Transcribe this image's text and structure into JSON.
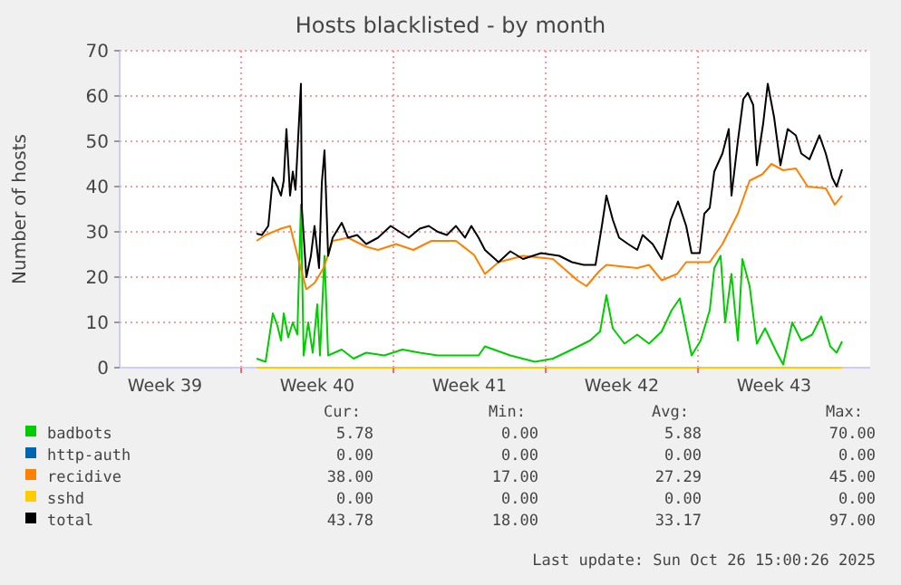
{
  "chart_data": {
    "type": "line",
    "title": "Hosts blacklisted - by month",
    "ylabel": "Number of hosts",
    "xlim": [
      "2025-09-23T10:00",
      "2025-10-27T22:00"
    ],
    "ylim": [
      0,
      70
    ],
    "xticks": [
      {
        "value": "2025-09-25T12:00",
        "label": "Week 39"
      },
      {
        "value": "2025-09-29",
        "label": null
      },
      {
        "value": "2025-10-02T12:00",
        "label": "Week 40"
      },
      {
        "value": "2025-10-06",
        "label": null
      },
      {
        "value": "2025-10-09T12:00",
        "label": "Week 41"
      },
      {
        "value": "2025-10-13",
        "label": null
      },
      {
        "value": "2025-10-16T12:00",
        "label": "Week 42"
      },
      {
        "value": "2025-10-20",
        "label": null
      },
      {
        "value": "2025-10-23T12:00",
        "label": "Week 43"
      }
    ],
    "yticks": [
      0,
      10,
      20,
      30,
      40,
      50,
      60,
      70
    ],
    "grid": true,
    "legend": "bottom",
    "line_style": "solid",
    "marker": "none",
    "series": [
      {
        "name": "badbots",
        "color": "#00cc00",
        "x": [
          "2025-09-29T17:00",
          "2025-09-30T03:00",
          "2025-09-30T11:00",
          "2025-09-30T16:00",
          "2025-09-30T20:00",
          "2025-09-30T23:00",
          "2025-10-01T04:00",
          "2025-10-01T09:00",
          "2025-10-01T14:00",
          "2025-10-01T18:00",
          "2025-10-01T21:00",
          "2025-10-02T02:00",
          "2025-10-02T07:00",
          "2025-10-02T12:00",
          "2025-10-02T15:00",
          "2025-10-02T20:00",
          "2025-10-03T00:00",
          "2025-10-03T15:00",
          "2025-10-04T04:00",
          "2025-10-04T18:00",
          "2025-10-05T14:00",
          "2025-10-06T10:00",
          "2025-10-07T05:00",
          "2025-10-08T01:00",
          "2025-10-08T21:00",
          "2025-10-09T22:00",
          "2025-10-10T05:00",
          "2025-10-11T09:00",
          "2025-10-12T12:00",
          "2025-10-13T08:00",
          "2025-10-14T05:00",
          "2025-10-15T01:00",
          "2025-10-15T12:00",
          "2025-10-15T19:00",
          "2025-10-16T02:00",
          "2025-10-16T15:00",
          "2025-10-17T05:00",
          "2025-10-17T18:00",
          "2025-10-18T08:00",
          "2025-10-18T19:00",
          "2025-10-19T04:00",
          "2025-10-19T17:00",
          "2025-10-20T03:00",
          "2025-10-20T13:00",
          "2025-10-20T18:00",
          "2025-10-21T01:00",
          "2025-10-21T06:00",
          "2025-10-21T13:00",
          "2025-10-21T20:00",
          "2025-10-22T01:00",
          "2025-10-22T09:00",
          "2025-10-22T17:00",
          "2025-10-23T02:00",
          "2025-10-23T15:00",
          "2025-10-23T22:00",
          "2025-10-24T08:00",
          "2025-10-24T18:00",
          "2025-10-25T06:00",
          "2025-10-25T16:00",
          "2025-10-26T02:00",
          "2025-10-26T09:00",
          "2025-10-26T15:00"
        ],
        "values": [
          2.0,
          1.3,
          12.0,
          9.3,
          6.0,
          12.0,
          6.7,
          10.0,
          7.3,
          36.0,
          2.7,
          10.0,
          3.3,
          14.0,
          2.7,
          24.7,
          2.7,
          4.0,
          2.0,
          3.3,
          2.7,
          4.0,
          3.3,
          2.7,
          2.7,
          2.7,
          4.7,
          2.7,
          1.3,
          2.0,
          4.0,
          6.0,
          8.0,
          16.0,
          8.7,
          5.3,
          7.3,
          5.3,
          8.0,
          12.7,
          15.3,
          2.7,
          6.0,
          12.7,
          22.0,
          24.7,
          10.0,
          20.7,
          6.0,
          24.0,
          18.0,
          5.3,
          8.7,
          3.3,
          0.7,
          10.0,
          6.0,
          7.3,
          11.3,
          4.7,
          3.3,
          5.8
        ]
      },
      {
        "name": "http-auth",
        "color": "#0066b3"
      },
      {
        "name": "recidive",
        "color": "#ff8000",
        "x": [
          "2025-09-29T17:00",
          "2025-09-30T03:00",
          "2025-09-30T20:00",
          "2025-10-01T06:00",
          "2025-10-01T16:00",
          "2025-10-02T00:00",
          "2025-10-02T09:00",
          "2025-10-02T19:00",
          "2025-10-03T05:00",
          "2025-10-03T22:00",
          "2025-10-04T18:00",
          "2025-10-05T07:00",
          "2025-10-06T03:00",
          "2025-10-06T22:00",
          "2025-10-07T18:00",
          "2025-10-08T21:00",
          "2025-10-09T17:00",
          "2025-10-10T05:00",
          "2025-10-10T20:00",
          "2025-10-11T23:00",
          "2025-10-13T08:00",
          "2025-10-14T11:00",
          "2025-10-14T21:00",
          "2025-10-15T11:00",
          "2025-10-15T19:00",
          "2025-10-17T05:00",
          "2025-10-17T18:00",
          "2025-10-18T08:00",
          "2025-10-19T01:00",
          "2025-10-19T11:00",
          "2025-10-20T13:00",
          "2025-10-21T03:00",
          "2025-10-21T20:00",
          "2025-10-22T09:00",
          "2025-10-22T23:00",
          "2025-10-23T09:00",
          "2025-10-23T22:00",
          "2025-10-24T12:00",
          "2025-10-25T01:00",
          "2025-10-25T21:00",
          "2025-10-26T07:00",
          "2025-10-26T15:00"
        ],
        "values": [
          28.0,
          29.3,
          30.7,
          31.3,
          23.3,
          17.3,
          18.7,
          22.0,
          28.0,
          28.7,
          26.7,
          26.0,
          27.3,
          26.0,
          28.0,
          28.0,
          24.9,
          20.7,
          23.3,
          24.7,
          24.0,
          19.3,
          18.0,
          21.3,
          22.7,
          22.0,
          22.7,
          19.3,
          20.7,
          23.3,
          23.3,
          27.3,
          34.0,
          41.3,
          42.7,
          45.0,
          43.6,
          44.0,
          40.0,
          39.6,
          36.0,
          38.0
        ]
      },
      {
        "name": "sshd",
        "color": "#ffcc00",
        "x": [
          "2025-09-29T17:00",
          "2025-10-26T15:00"
        ],
        "values": [
          0,
          0
        ]
      },
      {
        "name": "total",
        "color": "#000000",
        "x": [
          "2025-09-29T17:00",
          "2025-09-29T23:00",
          "2025-09-30T06:00",
          "2025-09-30T11:00",
          "2025-09-30T16:00",
          "2025-09-30T20:00",
          "2025-09-30T23:00",
          "2025-10-01T02:00",
          "2025-10-01T06:00",
          "2025-10-01T09:00",
          "2025-10-01T12:00",
          "2025-10-01T18:00",
          "2025-10-01T19:00",
          "2025-10-02T00:00",
          "2025-10-02T05:00",
          "2025-10-02T09:00",
          "2025-10-02T14:00",
          "2025-10-02T17:00",
          "2025-10-02T20:00",
          "2025-10-03T00:00",
          "2025-10-03T05:00",
          "2025-10-03T15:00",
          "2025-10-03T22:00",
          "2025-10-04T08:00",
          "2025-10-04T18:00",
          "2025-10-05T07:00",
          "2025-10-05T21:00",
          "2025-10-06T07:00",
          "2025-10-06T17:00",
          "2025-10-07T05:00",
          "2025-10-07T15:00",
          "2025-10-08T01:00",
          "2025-10-08T11:00",
          "2025-10-08T21:00",
          "2025-10-09T07:00",
          "2025-10-09T14:00",
          "2025-10-09T22:00",
          "2025-10-10T05:00",
          "2025-10-10T20:00",
          "2025-10-11T09:00",
          "2025-10-11T23:00",
          "2025-10-12T19:00",
          "2025-10-13T15:00",
          "2025-10-14T05:00",
          "2025-10-14T18:00",
          "2025-10-15T07:00",
          "2025-10-15T14:00",
          "2025-10-15T19:00",
          "2025-10-16T02:00",
          "2025-10-16T09:00",
          "2025-10-16T19:00",
          "2025-10-17T05:00",
          "2025-10-17T11:00",
          "2025-10-17T22:00",
          "2025-10-18T08:00",
          "2025-10-18T18:00",
          "2025-10-19T02:00",
          "2025-10-19T11:00",
          "2025-10-19T17:00",
          "2025-10-20T02:00",
          "2025-10-20T07:00",
          "2025-10-20T13:00",
          "2025-10-20T18:00",
          "2025-10-21T03:00",
          "2025-10-21T10:00",
          "2025-10-21T13:00",
          "2025-10-21T20:00",
          "2025-10-22T02:00",
          "2025-10-22T07:00",
          "2025-10-22T13:00",
          "2025-10-22T17:00",
          "2025-10-23T00:00",
          "2025-10-23T05:00",
          "2025-10-23T12:00",
          "2025-10-23T19:00",
          "2025-10-24T03:00",
          "2025-10-24T12:00",
          "2025-10-24T18:00",
          "2025-10-25T03:00",
          "2025-10-25T14:00",
          "2025-10-25T21:00",
          "2025-10-26T04:00",
          "2025-10-26T09:00",
          "2025-10-26T15:00"
        ],
        "values": [
          29.6,
          29.3,
          31.3,
          42.0,
          40.0,
          38.0,
          41.3,
          52.7,
          38.0,
          43.3,
          39.3,
          62.7,
          35.3,
          20.0,
          24.7,
          31.3,
          22.0,
          40.7,
          48.0,
          24.7,
          28.7,
          32.0,
          28.7,
          29.3,
          27.3,
          28.7,
          31.3,
          30.0,
          28.7,
          30.7,
          31.3,
          30.0,
          29.3,
          31.3,
          28.7,
          31.3,
          28.7,
          26.0,
          23.3,
          25.7,
          24.0,
          25.3,
          24.7,
          23.3,
          22.7,
          22.7,
          31.3,
          38.0,
          32.7,
          28.7,
          27.3,
          26.0,
          29.3,
          27.3,
          24.0,
          32.7,
          36.7,
          31.3,
          25.3,
          25.3,
          34.0,
          35.3,
          43.3,
          47.3,
          52.7,
          38.0,
          50.0,
          59.3,
          60.7,
          58.0,
          44.7,
          54.0,
          62.7,
          55.3,
          44.7,
          52.7,
          51.3,
          47.3,
          46.0,
          51.3,
          47.3,
          42.0,
          40.0,
          43.8
        ]
      }
    ],
    "annotations": [
      "Cur:",
      "Min:",
      "Avg:",
      "Max:",
      "5.78",
      "0.00",
      "5.88",
      "70.00",
      "0.00",
      "0.00",
      "0.00",
      "0.00",
      "38.00",
      "17.00",
      "27.29",
      "45.00",
      "0.00",
      "0.00",
      "0.00",
      "0.00",
      "43.78",
      "18.00",
      "33.17",
      "97.00",
      "Last update: Sun Oct 26 15:00:26 2025"
    ]
  }
}
